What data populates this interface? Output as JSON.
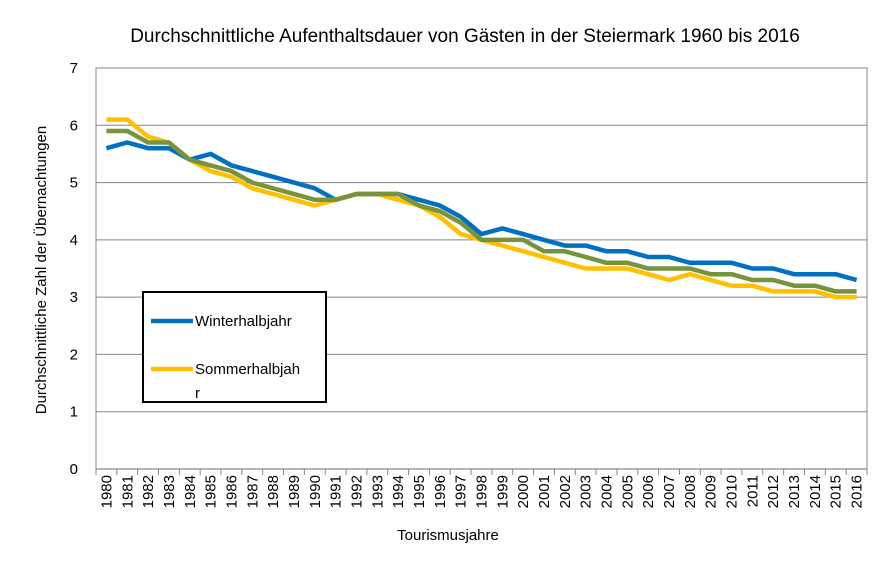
{
  "chart_data": {
    "type": "line",
    "title": "Durchschnittliche Aufenthaltsdauer von Gästen in der Steiermark 1960 bis 2016",
    "xlabel": "Tourismusjahre",
    "ylabel": "Durchschnittliche Zahl der Übernachtungen",
    "ylim": [
      0,
      7
    ],
    "yticks": [
      "0",
      "1",
      "2",
      "3",
      "4",
      "5",
      "6",
      "7"
    ],
    "grid": true,
    "legend_position": "bottom-left",
    "categories": [
      "1980",
      "1981",
      "1982",
      "1983",
      "1984",
      "1985",
      "1986",
      "1987",
      "1988",
      "1989",
      "1990",
      "1991",
      "1992",
      "1993",
      "1994",
      "1995",
      "1996",
      "1997",
      "1998",
      "1999",
      "2000",
      "2001",
      "2002",
      "2003",
      "2004",
      "2005",
      "2006",
      "2007",
      "2008",
      "2009",
      "2010",
      "2011",
      "2012",
      "2013",
      "2014",
      "2015",
      "2016"
    ],
    "series": [
      {
        "name": "Winterhalbjahr",
        "color": "#0070C0",
        "in_legend": true,
        "values": [
          5.6,
          5.7,
          5.6,
          5.6,
          5.4,
          5.5,
          5.3,
          5.2,
          5.1,
          5.0,
          4.9,
          4.7,
          4.8,
          4.8,
          4.8,
          4.7,
          4.6,
          4.4,
          4.1,
          4.2,
          4.1,
          4.0,
          3.9,
          3.9,
          3.8,
          3.8,
          3.7,
          3.7,
          3.6,
          3.6,
          3.6,
          3.5,
          3.5,
          3.4,
          3.4,
          3.4,
          3.3
        ]
      },
      {
        "name": "Sommerhalbjahr",
        "color": "#FFC000",
        "in_legend": true,
        "values": [
          6.1,
          6.1,
          5.8,
          5.7,
          5.4,
          5.2,
          5.1,
          4.9,
          4.8,
          4.7,
          4.6,
          4.7,
          4.8,
          4.8,
          4.7,
          4.6,
          4.4,
          4.1,
          4.0,
          3.9,
          3.8,
          3.7,
          3.6,
          3.5,
          3.5,
          3.5,
          3.4,
          3.3,
          3.4,
          3.3,
          3.2,
          3.2,
          3.1,
          3.1,
          3.1,
          3.0,
          3.0
        ]
      },
      {
        "name": "",
        "color": "#77933C",
        "in_legend": false,
        "values": [
          5.9,
          5.9,
          5.7,
          5.7,
          5.4,
          5.3,
          5.2,
          5.0,
          4.9,
          4.8,
          4.7,
          4.7,
          4.8,
          4.8,
          4.8,
          4.6,
          4.5,
          4.3,
          4.0,
          4.0,
          4.0,
          3.8,
          3.8,
          3.7,
          3.6,
          3.6,
          3.5,
          3.5,
          3.5,
          3.4,
          3.4,
          3.3,
          3.3,
          3.2,
          3.2,
          3.1,
          3.1
        ]
      }
    ],
    "legend": {
      "items": [
        {
          "lines": [
            "Winterhalbjahr"
          ],
          "color": "#0070C0"
        },
        {
          "lines": [
            "Sommerhalbjah",
            "r"
          ],
          "color": "#FFC000"
        }
      ]
    }
  }
}
